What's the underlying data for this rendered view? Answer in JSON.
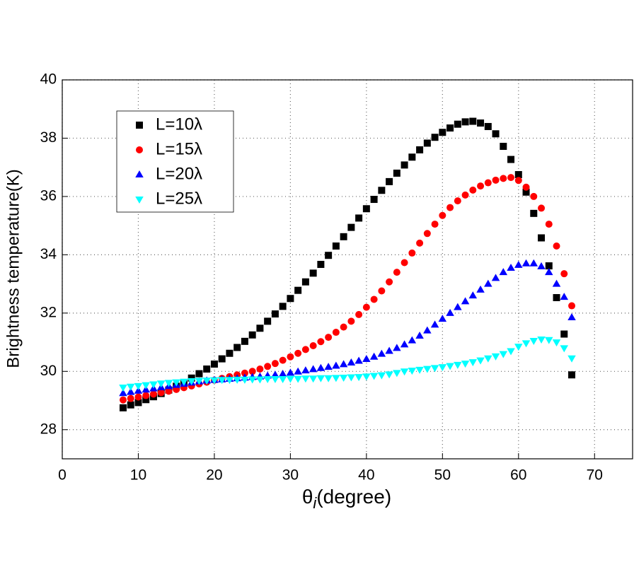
{
  "chart_data": {
    "type": "scatter",
    "ylabel": "Brightness temperature(K)",
    "xlabel_symbol": "θ",
    "xlabel_subscript": "i",
    "xlabel": "(degree)",
    "x": [
      8,
      9,
      10,
      11,
      12,
      13,
      14,
      15,
      16,
      17,
      18,
      19,
      20,
      21,
      22,
      23,
      24,
      25,
      26,
      27,
      28,
      29,
      30,
      31,
      32,
      33,
      34,
      35,
      36,
      37,
      38,
      39,
      40,
      41,
      42,
      43,
      44,
      45,
      46,
      47,
      48,
      49,
      50,
      51,
      52,
      53,
      54,
      55,
      56,
      57,
      58,
      59,
      60,
      61,
      62,
      63,
      64,
      65,
      66,
      67
    ],
    "series": [
      {
        "name": "L=10λ",
        "color": "#000000",
        "marker": "square",
        "values": [
          28.75,
          28.85,
          28.93,
          29.03,
          29.13,
          29.24,
          29.36,
          29.49,
          29.62,
          29.77,
          29.92,
          30.08,
          30.25,
          30.43,
          30.62,
          30.82,
          31.03,
          31.25,
          31.48,
          31.72,
          31.97,
          32.23,
          32.5,
          32.78,
          33.07,
          33.37,
          33.67,
          33.98,
          34.3,
          34.62,
          34.94,
          35.26,
          35.58,
          35.9,
          36.21,
          36.51,
          36.8,
          37.08,
          37.35,
          37.6,
          37.83,
          38.03,
          38.2,
          38.35,
          38.48,
          38.56,
          38.58,
          38.52,
          38.4,
          38.15,
          37.72,
          37.27,
          36.75,
          36.15,
          35.42,
          34.58,
          33.62,
          32.53,
          31.28,
          29.88
        ]
      },
      {
        "name": "L=15λ",
        "color": "#ff0000",
        "marker": "circle",
        "values": [
          29.02,
          29.07,
          29.12,
          29.17,
          29.22,
          29.27,
          29.32,
          29.38,
          29.44,
          29.5,
          29.57,
          29.63,
          29.7,
          29.76,
          29.82,
          29.88,
          29.94,
          30.0,
          30.08,
          30.17,
          30.27,
          30.38,
          30.5,
          30.62,
          30.75,
          30.88,
          31.02,
          31.17,
          31.34,
          31.52,
          31.72,
          31.95,
          32.2,
          32.47,
          32.76,
          33.07,
          33.4,
          33.73,
          34.06,
          34.4,
          34.73,
          35.05,
          35.35,
          35.62,
          35.85,
          36.05,
          36.22,
          36.36,
          36.47,
          36.56,
          36.62,
          36.65,
          36.55,
          36.32,
          36.0,
          35.6,
          35.05,
          34.3,
          33.35,
          32.25
        ]
      },
      {
        "name": "L=20λ",
        "color": "#0000ff",
        "marker": "triangle-up",
        "values": [
          29.25,
          29.29,
          29.33,
          29.37,
          29.41,
          29.45,
          29.49,
          29.53,
          29.57,
          29.61,
          29.65,
          29.68,
          29.7,
          29.72,
          29.74,
          29.76,
          29.78,
          29.8,
          29.82,
          29.85,
          29.88,
          29.91,
          29.95,
          29.99,
          30.03,
          30.07,
          30.11,
          30.15,
          30.19,
          30.24,
          30.3,
          30.36,
          30.42,
          30.5,
          30.6,
          30.7,
          30.8,
          30.92,
          31.06,
          31.22,
          31.4,
          31.6,
          31.8,
          32.0,
          32.2,
          32.4,
          32.6,
          32.8,
          33.0,
          33.2,
          33.4,
          33.55,
          33.65,
          33.7,
          33.7,
          33.6,
          33.4,
          33.0,
          32.55,
          31.85
        ]
      },
      {
        "name": "L=25λ",
        "color": "#00ffff",
        "marker": "triangle-down",
        "values": [
          29.45,
          29.48,
          29.5,
          29.53,
          29.56,
          29.59,
          29.61,
          29.63,
          29.65,
          29.67,
          29.68,
          29.69,
          29.7,
          29.71,
          29.71,
          29.72,
          29.72,
          29.73,
          29.73,
          29.74,
          29.74,
          29.74,
          29.75,
          29.75,
          29.76,
          29.76,
          29.77,
          29.77,
          29.78,
          29.79,
          29.8,
          29.81,
          29.83,
          29.85,
          29.87,
          29.9,
          29.95,
          30.0,
          30.03,
          30.06,
          30.09,
          30.12,
          30.15,
          30.19,
          30.23,
          30.27,
          30.32,
          30.38,
          30.45,
          30.52,
          30.6,
          30.7,
          30.85,
          30.97,
          31.05,
          31.1,
          31.08,
          31.0,
          30.8,
          30.45
        ]
      }
    ],
    "xlim": [
      0,
      75
    ],
    "ylim": [
      27,
      40
    ],
    "xticks": [
      0,
      10,
      20,
      30,
      40,
      50,
      60,
      70
    ],
    "yticks": [
      28,
      30,
      32,
      34,
      36,
      38,
      40
    ],
    "grid": true,
    "legend": "upper left"
  }
}
